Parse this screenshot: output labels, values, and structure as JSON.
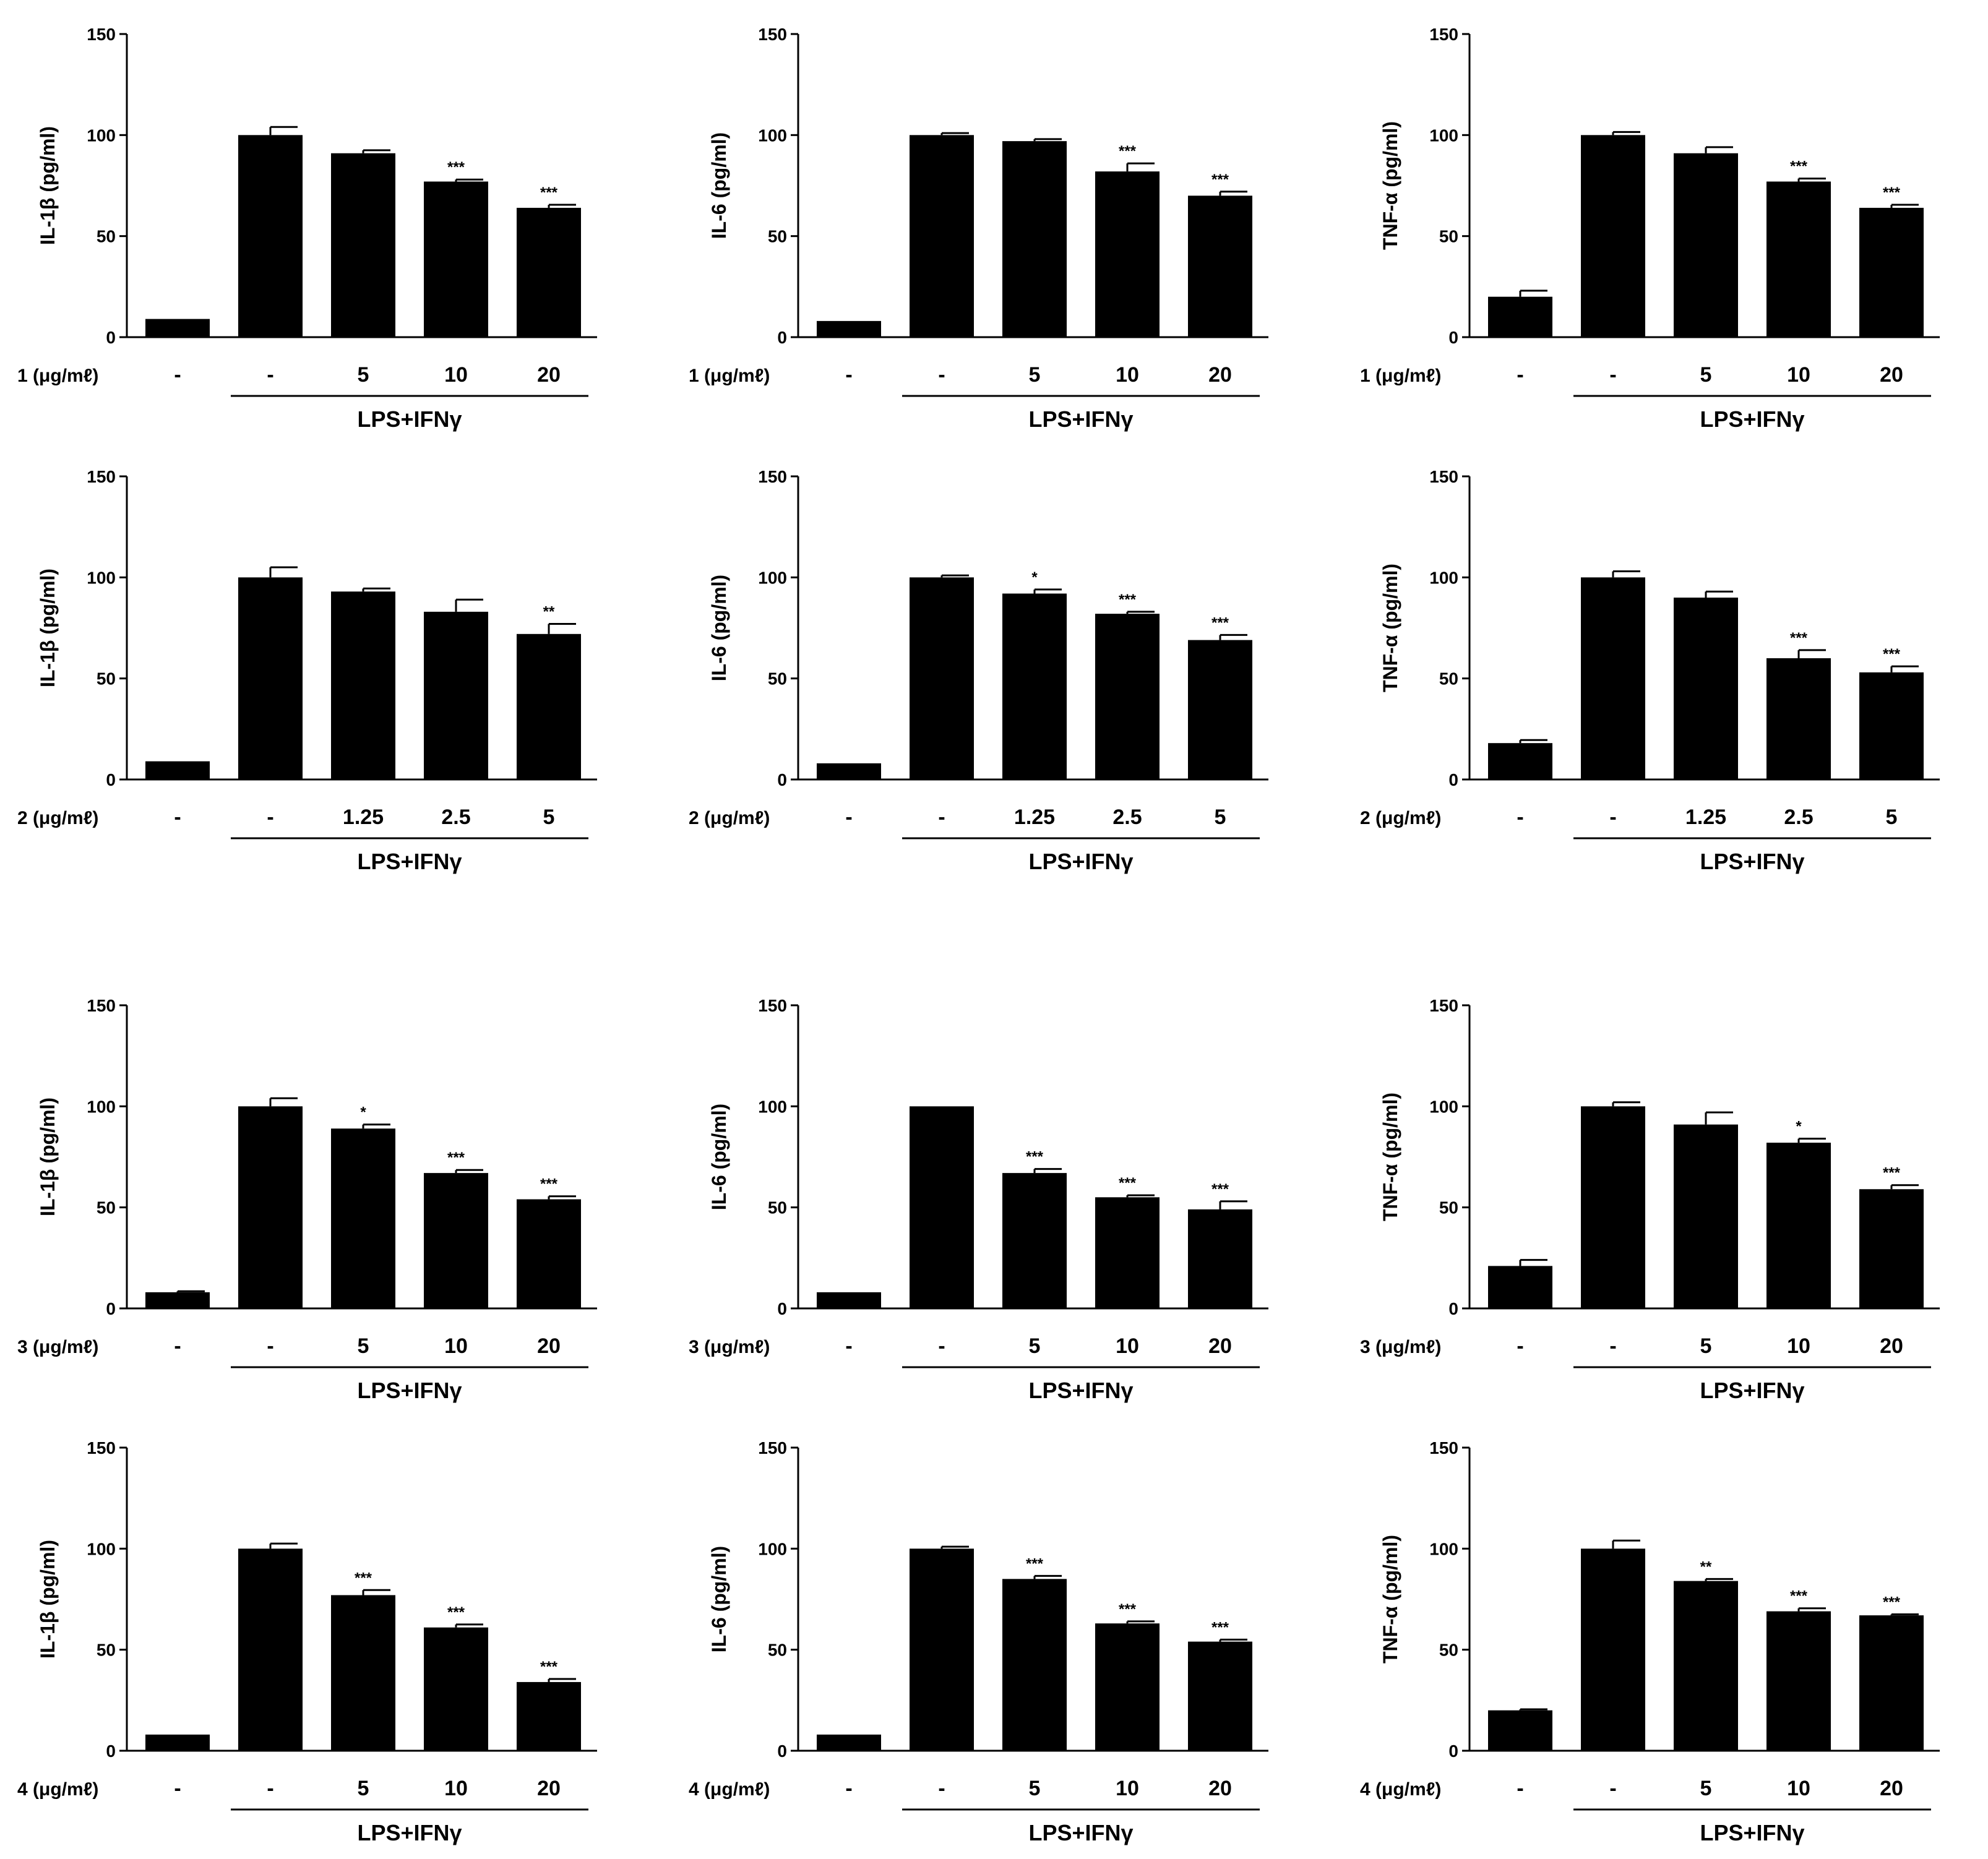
{
  "figure": {
    "y_ticks": [
      "0",
      "50",
      "100",
      "150"
    ],
    "y_max": 150,
    "bracket_label": "LPS+IFNγ",
    "control_label": "-",
    "lps_only_label": "-"
  },
  "chart_data": [
    {
      "type": "bar",
      "compound_label": "1 (μg/mℓ)",
      "ylabel": "IL-1β (pg/ml)",
      "categories": [
        "-",
        "-",
        "5",
        "10",
        "20"
      ],
      "values": [
        9,
        100,
        91,
        77,
        64
      ],
      "errors": [
        0,
        4,
        1.5,
        1,
        1.5
      ],
      "significance": [
        "",
        "",
        "",
        "***",
        "***"
      ],
      "ylim": [
        0,
        150
      ]
    },
    {
      "type": "bar",
      "compound_label": "1 (μg/mℓ)",
      "ylabel": "IL-6 (pg/ml)",
      "categories": [
        "-",
        "-",
        "5",
        "10",
        "20"
      ],
      "values": [
        8,
        100,
        97,
        82,
        70
      ],
      "errors": [
        0,
        1,
        1,
        4,
        2
      ],
      "significance": [
        "",
        "",
        "",
        "***",
        "***"
      ],
      "ylim": [
        0,
        150
      ]
    },
    {
      "type": "bar",
      "compound_label": "1 (μg/mℓ)",
      "ylabel": "TNF-α (pg/ml)",
      "categories": [
        "-",
        "-",
        "5",
        "10",
        "20"
      ],
      "values": [
        20,
        100,
        91,
        77,
        64
      ],
      "errors": [
        3,
        1.5,
        3,
        1.5,
        1.5
      ],
      "significance": [
        "",
        "",
        "",
        "***",
        "***"
      ],
      "ylim": [
        0,
        150
      ]
    },
    {
      "type": "bar",
      "compound_label": "2 (μg/mℓ)",
      "ylabel": "IL-1β (pg/ml)",
      "categories": [
        "-",
        "-",
        "1.25",
        "2.5",
        "5"
      ],
      "values": [
        9,
        100,
        93,
        83,
        72
      ],
      "errors": [
        0,
        5,
        1.5,
        6,
        5
      ],
      "significance": [
        "",
        "",
        "",
        "",
        "**"
      ],
      "ylim": [
        0,
        150
      ]
    },
    {
      "type": "bar",
      "compound_label": "2 (μg/mℓ)",
      "ylabel": "IL-6 (pg/ml)",
      "categories": [
        "-",
        "-",
        "1.25",
        "2.5",
        "5"
      ],
      "values": [
        8,
        100,
        92,
        82,
        69
      ],
      "errors": [
        0,
        1,
        2,
        1,
        2.5
      ],
      "significance": [
        "",
        "",
        "*",
        "***",
        "***"
      ],
      "ylim": [
        0,
        150
      ]
    },
    {
      "type": "bar",
      "compound_label": "2 (μg/mℓ)",
      "ylabel": "TNF-α (pg/ml)",
      "categories": [
        "-",
        "-",
        "1.25",
        "2.5",
        "5"
      ],
      "values": [
        18,
        100,
        90,
        60,
        53
      ],
      "errors": [
        1.5,
        3,
        3,
        4,
        3
      ],
      "significance": [
        "",
        "",
        "",
        "***",
        "***"
      ],
      "ylim": [
        0,
        150
      ]
    },
    {
      "type": "bar",
      "compound_label": "3 (μg/mℓ)",
      "ylabel": "IL-1β (pg/ml)",
      "categories": [
        "-",
        "-",
        "5",
        "10",
        "20"
      ],
      "values": [
        8,
        100,
        89,
        67,
        54
      ],
      "errors": [
        0.5,
        4,
        2,
        1.5,
        1.5
      ],
      "significance": [
        "",
        "",
        "*",
        "***",
        "***"
      ],
      "ylim": [
        0,
        150
      ]
    },
    {
      "type": "bar",
      "compound_label": "3 (μg/mℓ)",
      "ylabel": "IL-6 (pg/ml)",
      "categories": [
        "-",
        "-",
        "5",
        "10",
        "20"
      ],
      "values": [
        8,
        100,
        67,
        55,
        49
      ],
      "errors": [
        0,
        0,
        2,
        1,
        4
      ],
      "significance": [
        "",
        "",
        "***",
        "***",
        "***"
      ],
      "ylim": [
        0,
        150
      ]
    },
    {
      "type": "bar",
      "compound_label": "3 (μg/mℓ)",
      "ylabel": "TNF-α (pg/ml)",
      "categories": [
        "-",
        "-",
        "5",
        "10",
        "20"
      ],
      "values": [
        21,
        100,
        91,
        82,
        59
      ],
      "errors": [
        3,
        2,
        6,
        2,
        2
      ],
      "significance": [
        "",
        "",
        "",
        "*",
        "***"
      ],
      "ylim": [
        0,
        150
      ]
    },
    {
      "type": "bar",
      "compound_label": "4 (μg/mℓ)",
      "ylabel": "IL-1β (pg/ml)",
      "categories": [
        "-",
        "-",
        "5",
        "10",
        "20"
      ],
      "values": [
        8,
        100,
        77,
        61,
        34
      ],
      "errors": [
        0,
        2.5,
        2.5,
        1.5,
        1.5
      ],
      "significance": [
        "",
        "",
        "***",
        "***",
        "***"
      ],
      "ylim": [
        0,
        150
      ]
    },
    {
      "type": "bar",
      "compound_label": "4 (μg/mℓ)",
      "ylabel": "IL-6 (pg/ml)",
      "categories": [
        "-",
        "-",
        "5",
        "10",
        "20"
      ],
      "values": [
        8,
        100,
        85,
        63,
        54
      ],
      "errors": [
        0,
        1,
        1.5,
        1,
        1
      ],
      "significance": [
        "",
        "",
        "***",
        "***",
        "***"
      ],
      "ylim": [
        0,
        150
      ]
    },
    {
      "type": "bar",
      "compound_label": "4 (μg/mℓ)",
      "ylabel": "TNF-α (pg/ml)",
      "categories": [
        "-",
        "-",
        "5",
        "10",
        "20"
      ],
      "values": [
        20,
        100,
        84,
        69,
        67
      ],
      "errors": [
        0.5,
        4,
        1,
        1.5,
        0.5
      ],
      "significance": [
        "",
        "",
        "**",
        "***",
        "***"
      ],
      "ylim": [
        0,
        150
      ]
    }
  ]
}
